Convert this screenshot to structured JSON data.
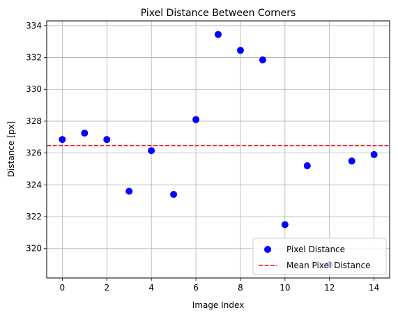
{
  "chart_data": {
    "type": "scatter",
    "title": "Pixel Distance Between Corners",
    "xlabel": "Image Index",
    "ylabel": "Distance [px]",
    "xlim": [
      -0.7,
      14.7
    ],
    "ylim": [
      318.15,
      334.3
    ],
    "xticks": [
      0,
      2,
      4,
      6,
      8,
      10,
      12,
      14
    ],
    "yticks": [
      320,
      322,
      324,
      326,
      328,
      330,
      332,
      334
    ],
    "grid": true,
    "legend_position": "lower-right",
    "series": [
      {
        "name": "Pixel Distance",
        "kind": "scatter",
        "color": "#0000ff",
        "x": [
          0,
          1,
          2,
          3,
          4,
          5,
          6,
          7,
          8,
          9,
          10,
          11,
          12,
          13,
          14
        ],
        "y": [
          326.85,
          327.25,
          326.85,
          323.6,
          326.15,
          323.4,
          328.1,
          333.45,
          332.45,
          331.85,
          321.5,
          325.2,
          319.0,
          325.5,
          325.9
        ]
      },
      {
        "name": "Mean Pixel Distance",
        "kind": "hline",
        "color": "#ff0000",
        "linestyle": "dashed",
        "y": 326.47
      }
    ]
  }
}
